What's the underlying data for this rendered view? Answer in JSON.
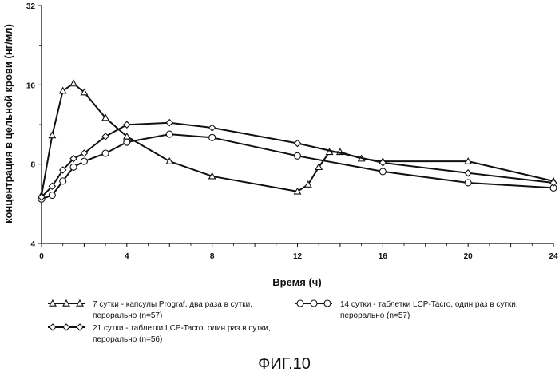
{
  "figure": {
    "caption": "ФИГ.10"
  },
  "chart_data": {
    "type": "line",
    "title": "",
    "xlabel": "Время (ч)",
    "ylabel": "концентрация в цельной крови (нг/мл)",
    "xlim": [
      0,
      24
    ],
    "ylim": [
      4,
      32
    ],
    "y_scale": "log2",
    "x_ticks": [
      "0",
      "2",
      "4",
      "6",
      "8",
      "10",
      "12",
      "14",
      "16",
      "18",
      "20",
      "22",
      "24"
    ],
    "y_ticks": [
      "4",
      "8",
      "16",
      "32"
    ],
    "grid": false,
    "legend_position": "bottom",
    "series": [
      {
        "name": "7 сутки - капсулы Prograf, два раза в сутки, перорально (n=57)",
        "marker": "triangle",
        "x": [
          0,
          0.5,
          1,
          1.5,
          2,
          3,
          4,
          6,
          8,
          12,
          12.5,
          13,
          13.5,
          14,
          15,
          16,
          20,
          24
        ],
        "y": [
          6.1,
          10.3,
          15.2,
          16.2,
          15.0,
          12.0,
          10.2,
          8.2,
          7.2,
          6.3,
          6.7,
          7.8,
          8.9,
          8.9,
          8.4,
          8.2,
          8.2,
          6.9
        ]
      },
      {
        "name": "14 сутки - таблетки LCP-Tacro, один раз в сутки, перорально (n=57)",
        "marker": "circle",
        "x": [
          0,
          0.5,
          1,
          1.5,
          2,
          3,
          4,
          6,
          8,
          12,
          16,
          20,
          24
        ],
        "y": [
          5.9,
          6.1,
          6.9,
          7.8,
          8.2,
          8.8,
          9.7,
          10.4,
          10.1,
          8.6,
          7.5,
          6.8,
          6.5
        ]
      },
      {
        "name": "21 сутки - таблетки LCP-Tacro, один раз в сутки, перорально (n=56)",
        "marker": "diamond",
        "x": [
          0,
          0.5,
          1,
          1.5,
          2,
          3,
          4,
          6,
          8,
          12,
          16,
          20,
          24
        ],
        "y": [
          6.0,
          6.6,
          7.6,
          8.4,
          8.8,
          10.2,
          11.3,
          11.5,
          11.0,
          9.6,
          8.1,
          7.4,
          6.8
        ]
      }
    ]
  }
}
